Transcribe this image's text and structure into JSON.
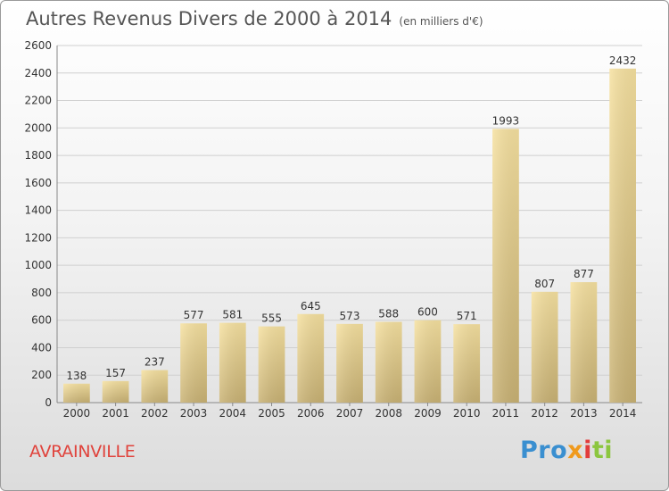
{
  "chart_data": {
    "type": "bar",
    "title": "Autres Revenus Divers de 2000 à 2014",
    "subtitle": "(en milliers d'€)",
    "categories": [
      "2000",
      "2001",
      "2002",
      "2003",
      "2004",
      "2005",
      "2006",
      "2007",
      "2008",
      "2009",
      "2010",
      "2011",
      "2012",
      "2013",
      "2014"
    ],
    "values": [
      138,
      157,
      237,
      577,
      581,
      555,
      645,
      573,
      588,
      600,
      571,
      1993,
      807,
      877,
      2432
    ],
    "ylim": [
      0,
      2600
    ],
    "yticks": [
      0,
      200,
      400,
      600,
      800,
      1000,
      1200,
      1400,
      1600,
      1800,
      2000,
      2200,
      2400,
      2600
    ],
    "grid": true,
    "data_labels": true,
    "colors": {
      "bar_light": "#f6e1a0",
      "bar_dark": "#c9b274",
      "grid": "#cfcfcf"
    }
  },
  "footer": {
    "location": "AVRAINVILLE",
    "brand_parts": [
      "Pro",
      "x",
      "i",
      "ti"
    ]
  }
}
